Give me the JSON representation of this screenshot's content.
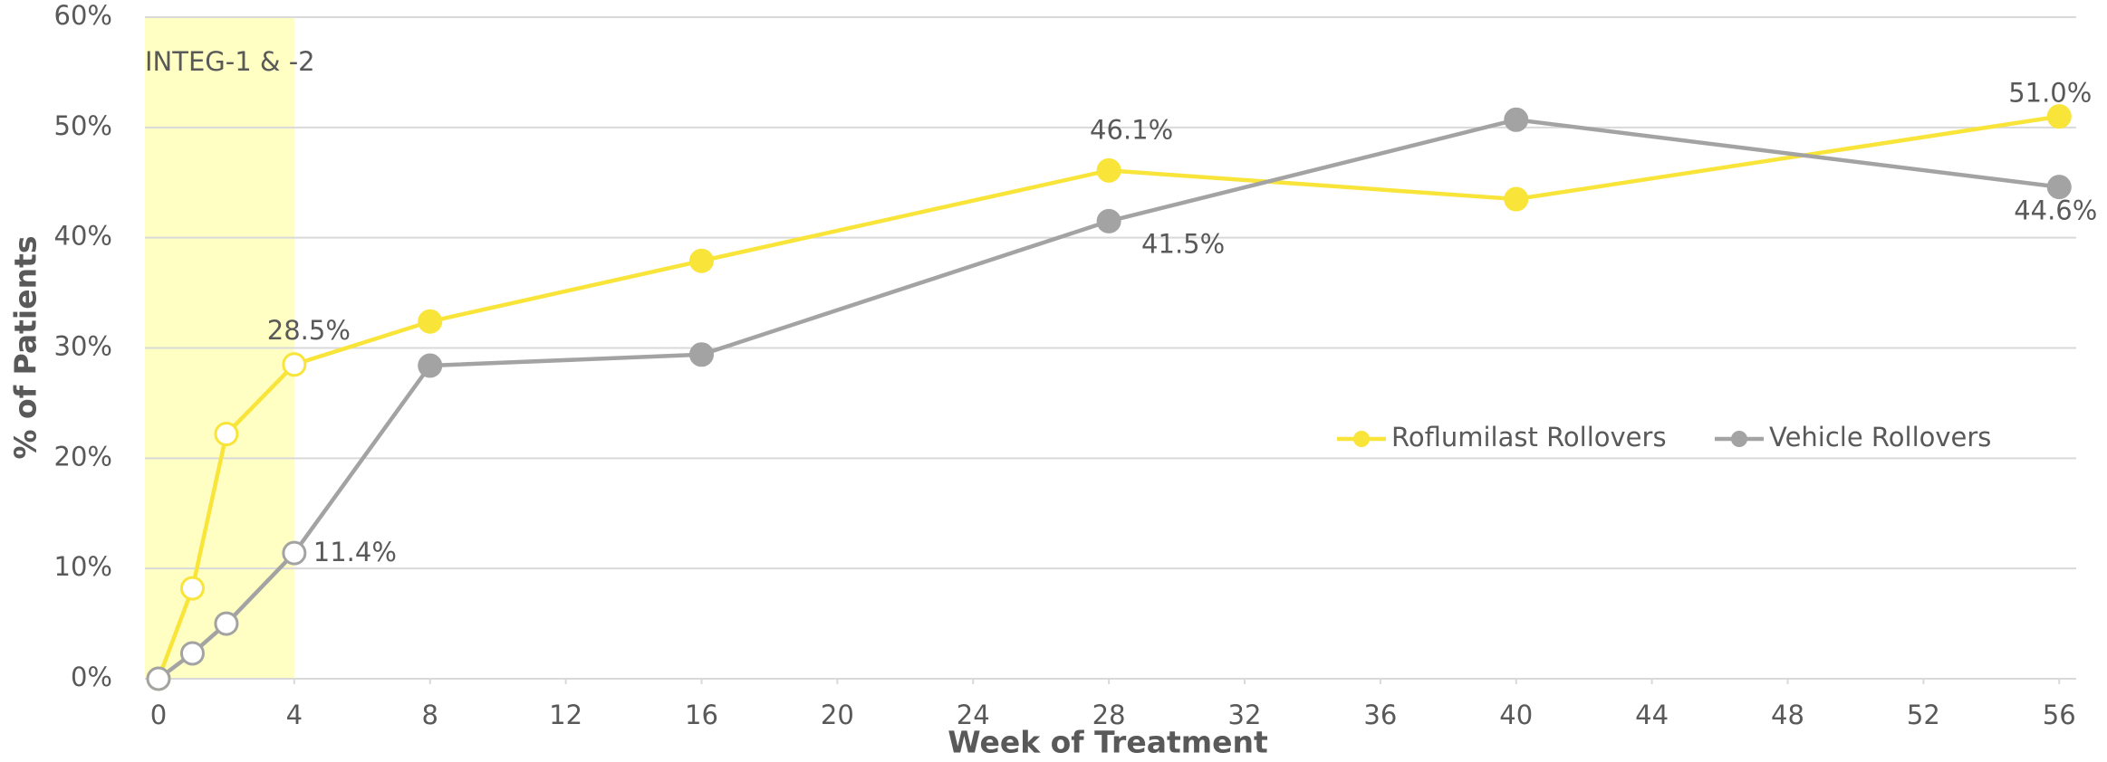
{
  "chart_data": {
    "type": "line",
    "x": [
      0,
      1,
      2,
      4,
      8,
      16,
      28,
      40,
      56
    ],
    "series": [
      {
        "name": "Roflumilast Rollovers",
        "color": "#f9e43a",
        "values": [
          0,
          8.2,
          22.2,
          28.5,
          32.4,
          37.9,
          46.1,
          43.5,
          51.0
        ],
        "value_labels": [
          null,
          null,
          null,
          "28.5%",
          null,
          null,
          "46.1%",
          null,
          "51.0%"
        ]
      },
      {
        "name": "Vehicle Rollovers",
        "color": "#a3a3a3",
        "values": [
          0,
          2.3,
          5.0,
          11.4,
          28.4,
          29.4,
          41.5,
          50.7,
          44.6
        ],
        "value_labels": [
          null,
          null,
          null,
          "11.4%",
          null,
          null,
          "41.5%",
          null,
          "44.6%"
        ]
      }
    ],
    "xlabel": "Week of Treatment",
    "ylabel": "% of Patients",
    "xlim": [
      -0.4,
      56.5
    ],
    "xticks": [
      0,
      4,
      8,
      12,
      16,
      20,
      24,
      28,
      32,
      36,
      40,
      44,
      48,
      52,
      56
    ],
    "ylim": [
      0,
      60
    ],
    "yticks": [
      {
        "value": 0,
        "label": "0%"
      },
      {
        "value": 10,
        "label": "10%"
      },
      {
        "value": 20,
        "label": "20%"
      },
      {
        "value": 30,
        "label": "30%"
      },
      {
        "value": 40,
        "label": "40%"
      },
      {
        "value": 50,
        "label": "50%"
      },
      {
        "value": 60,
        "label": "60%"
      }
    ],
    "grid": true,
    "shaded_region": {
      "label": "INTEG-1 & -2",
      "x": [
        0,
        4
      ],
      "color": "#ffffc4"
    }
  }
}
